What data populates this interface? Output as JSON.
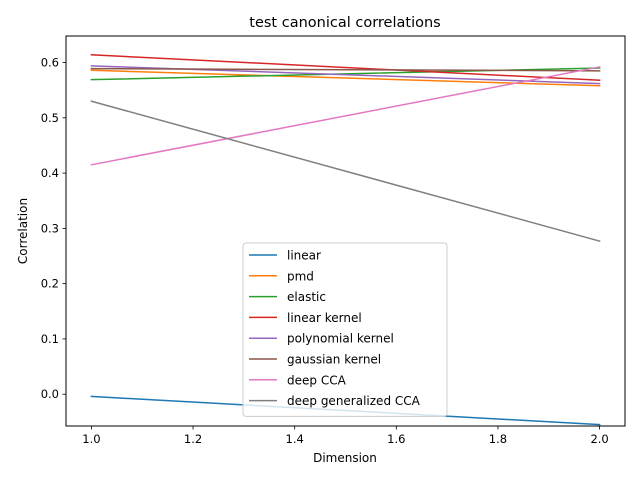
{
  "chart_data": {
    "type": "line",
    "title": "test canonical correlations",
    "xlabel": "Dimension",
    "ylabel": "Correlation",
    "xlim": [
      0.95,
      2.05
    ],
    "ylim": [
      -0.0575,
      0.648
    ],
    "xticks": [
      1.0,
      1.2,
      1.4,
      1.6,
      1.8,
      2.0
    ],
    "xtick_labels": [
      "1.0",
      "1.2",
      "1.4",
      "1.6",
      "1.8",
      "2.0"
    ],
    "yticks": [
      0.0,
      0.1,
      0.2,
      0.3,
      0.4,
      0.5,
      0.6
    ],
    "ytick_labels": [
      "0.0",
      "0.1",
      "0.2",
      "0.3",
      "0.4",
      "0.5",
      "0.6"
    ],
    "grid": false,
    "legend_position": "lower center",
    "x": [
      1,
      2
    ],
    "series": [
      {
        "name": "linear",
        "color": "#1f77b4",
        "values": [
          -0.004,
          -0.055
        ]
      },
      {
        "name": "pmd",
        "color": "#ff7f0e",
        "values": [
          0.586,
          0.558
        ]
      },
      {
        "name": "elastic",
        "color": "#2ca02c",
        "values": [
          0.569,
          0.59
        ]
      },
      {
        "name": "linear kernel",
        "color": "#d62728",
        "values": [
          0.614,
          0.568
        ]
      },
      {
        "name": "polynomial kernel",
        "color": "#9467bd",
        "values": [
          0.594,
          0.562
        ]
      },
      {
        "name": "gaussian kernel",
        "color": "#8c564b",
        "values": [
          0.589,
          0.585
        ]
      },
      {
        "name": "deep CCA",
        "color": "#e377c2",
        "values": [
          0.415,
          0.592
        ]
      },
      {
        "name": "deep generalized CCA",
        "color": "#7f7f7f",
        "values": [
          0.53,
          0.277
        ]
      }
    ]
  }
}
